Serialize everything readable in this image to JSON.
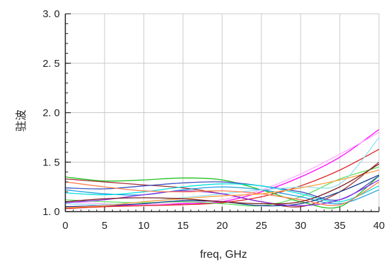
{
  "chart_data": {
    "type": "line",
    "title": "",
    "xlabel": "freq, GHz",
    "ylabel": "驻波",
    "xlim": [
      0,
      40
    ],
    "ylim": [
      1.0,
      3.0
    ],
    "xticks": [
      "0",
      "5",
      "10",
      "15",
      "20",
      "25",
      "30",
      "35",
      "40"
    ],
    "yticks": [
      "1. 0",
      "1. 5",
      "2. 0",
      "2. 5",
      "3. 0"
    ],
    "grid": true,
    "legend": "none",
    "x": [
      0,
      5,
      10,
      15,
      20,
      25,
      30,
      35,
      40
    ],
    "series": [
      {
        "color": "#ff00ff",
        "values": [
          1.05,
          1.06,
          1.07,
          1.08,
          1.1,
          1.2,
          1.35,
          1.55,
          1.83
        ]
      },
      {
        "color": "#ffaaff",
        "values": [
          1.1,
          1.08,
          1.07,
          1.09,
          1.12,
          1.22,
          1.38,
          1.58,
          1.8
        ]
      },
      {
        "color": "#e02020",
        "values": [
          1.03,
          1.05,
          1.06,
          1.07,
          1.09,
          1.15,
          1.26,
          1.42,
          1.63
        ]
      },
      {
        "color": "#a03030",
        "values": [
          1.33,
          1.3,
          1.27,
          1.24,
          1.18,
          1.1,
          1.05,
          1.2,
          1.5
        ]
      },
      {
        "color": "#20c020",
        "values": [
          1.35,
          1.31,
          1.32,
          1.34,
          1.32,
          1.22,
          1.1,
          1.05,
          1.36
        ]
      },
      {
        "color": "#60e060",
        "values": [
          1.12,
          1.1,
          1.09,
          1.1,
          1.08,
          1.06,
          1.15,
          1.33,
          1.45
        ]
      },
      {
        "color": "#3a50c0",
        "values": [
          1.24,
          1.23,
          1.26,
          1.29,
          1.3,
          1.26,
          1.2,
          1.12,
          1.36
        ]
      },
      {
        "color": "#1a9fe0",
        "values": [
          1.22,
          1.18,
          1.17,
          1.22,
          1.25,
          1.22,
          1.15,
          1.08,
          1.22
        ]
      },
      {
        "color": "#00e0e0",
        "values": [
          1.19,
          1.17,
          1.2,
          1.25,
          1.28,
          1.26,
          1.18,
          1.1,
          1.26
        ]
      },
      {
        "color": "#90e0f0",
        "values": [
          1.08,
          1.07,
          1.1,
          1.14,
          1.18,
          1.22,
          1.25,
          1.28,
          1.75
        ]
      },
      {
        "color": "#0a3b8a",
        "values": [
          1.05,
          1.06,
          1.08,
          1.11,
          1.1,
          1.06,
          1.08,
          1.2,
          1.37
        ]
      },
      {
        "color": "#8a2be2",
        "values": [
          1.09,
          1.12,
          1.17,
          1.21,
          1.18,
          1.1,
          1.06,
          1.12,
          1.32
        ]
      },
      {
        "color": "#ff7f50",
        "values": [
          1.3,
          1.25,
          1.21,
          1.2,
          1.21,
          1.18,
          1.12,
          1.07,
          1.3
        ]
      },
      {
        "color": "#ffa040",
        "values": [
          1.04,
          1.06,
          1.1,
          1.13,
          1.16,
          1.18,
          1.24,
          1.32,
          1.42
        ]
      },
      {
        "color": "#7a1a1a",
        "values": [
          1.1,
          1.13,
          1.14,
          1.13,
          1.1,
          1.08,
          1.1,
          1.25,
          1.48
        ]
      }
    ]
  }
}
